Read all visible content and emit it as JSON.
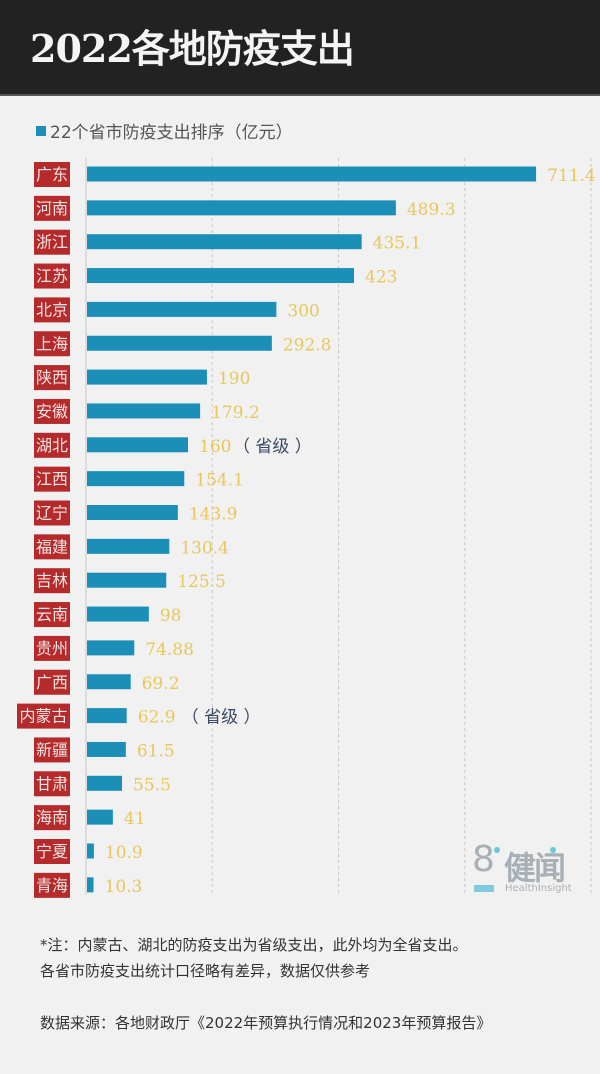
{
  "header": {
    "title": "2022各地防疫支出"
  },
  "legend": {
    "label": "22个省市防疫支出排序（亿元）",
    "color": "#1b8fb8"
  },
  "colors": {
    "bar": "#1b8fb8",
    "label_bg": "#b52a2a",
    "value": "#e8c75a",
    "annotation": "#3a4a66",
    "grid": "#c8c8c8"
  },
  "chart_data": {
    "type": "bar",
    "orientation": "horizontal",
    "title": "2022各地防疫支出",
    "legend": [
      "22个省市防疫支出排序（亿元）"
    ],
    "xlabel": "",
    "ylabel": "",
    "xlim": [
      0,
      800
    ],
    "grid_values": [
      0,
      200,
      400,
      600,
      800
    ],
    "grid": true,
    "categories": [
      "广东",
      "河南",
      "浙江",
      "江苏",
      "北京",
      "上海",
      "陕西",
      "安徽",
      "湖北",
      "江西",
      "辽宁",
      "福建",
      "吉林",
      "云南",
      "贵州",
      "广西",
      "内蒙古",
      "新疆",
      "甘肃",
      "海南",
      "宁夏",
      "青海"
    ],
    "values": [
      711.4,
      489.3,
      435.1,
      423,
      300,
      292.8,
      190,
      179.2,
      160,
      154.1,
      143.9,
      130.4,
      125.5,
      98,
      74.88,
      69.2,
      62.9,
      61.5,
      55.5,
      41,
      10.9,
      10.3
    ],
    "value_labels": [
      "711.4",
      "489.3",
      "435.1",
      "423",
      "300",
      "292.8",
      "190",
      "179.2",
      "160",
      "154.1",
      "143.9",
      "130.4",
      "125.5",
      "98",
      "74.88",
      "69.2",
      "62.9",
      "61.5",
      "55.5",
      "41",
      "10.9",
      "10.3"
    ],
    "annotations": [
      {
        "category": "湖北",
        "text": "（ 省级 ）"
      },
      {
        "category": "内蒙古",
        "text": "（ 省级 ）"
      }
    ]
  },
  "watermark": {
    "logo_digit": "8",
    "logo_text": "健闻",
    "logo_subtext": "HealthInsight"
  },
  "notes": {
    "line1": "*注：内蒙古、湖北的防疫支出为省级支出，此外均为全省支出。",
    "line2": "各省市防疫支出统计口径略有差异，数据仅供参考"
  },
  "source": "数据来源：各地财政厅《2022年预算执行情况和2023年预算报告》"
}
